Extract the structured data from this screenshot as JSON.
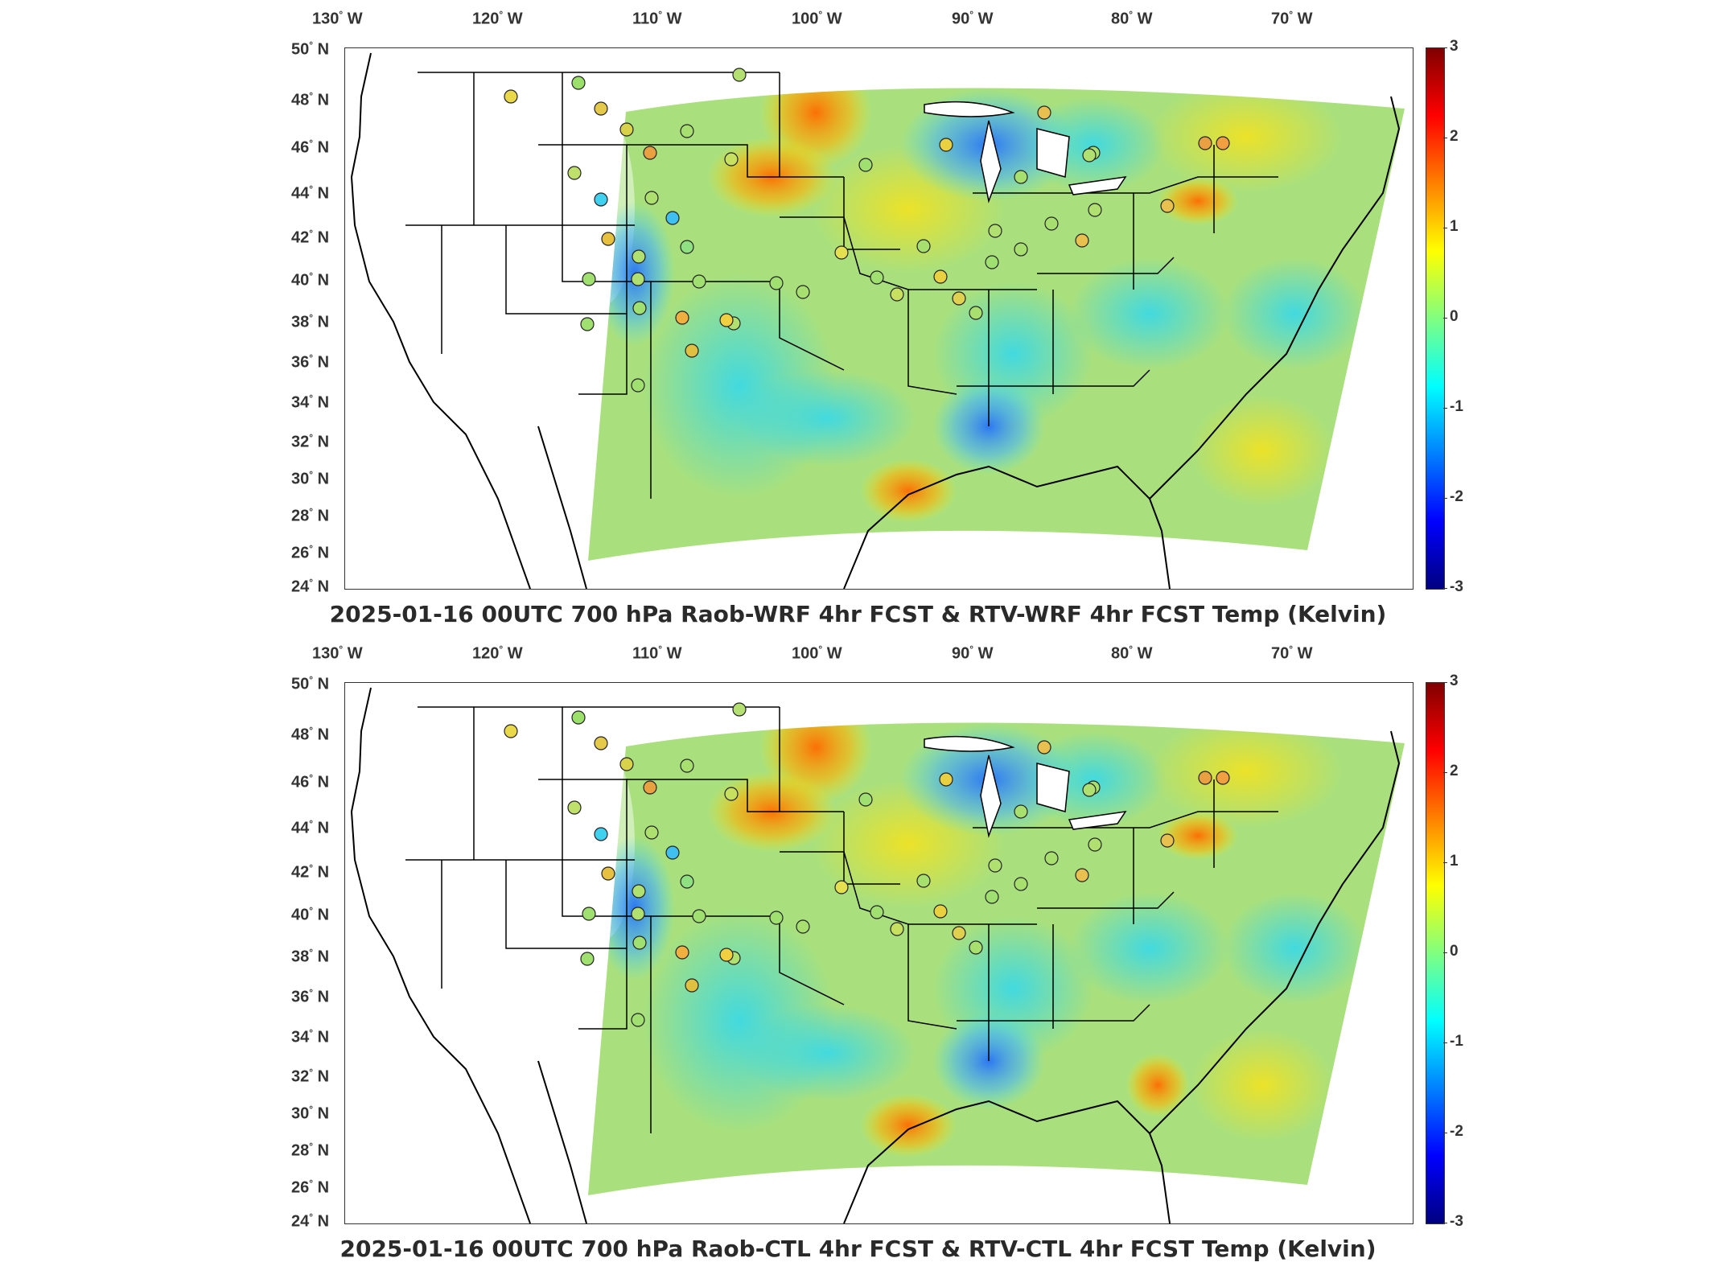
{
  "panels": [
    {
      "title": "2025-01-16 00UTC 700 hPa Raob-WRF 4hr FCST & RTV-WRF 4hr FCST Temp (Kelvin)"
    },
    {
      "title": "2025-01-16 00UTC 700 hPa Raob-CTL 4hr FCST & RTV-CTL 4hr FCST Temp (Kelvin)"
    }
  ],
  "longitude_labels": [
    "130",
    "120",
    "110",
    "100",
    "90",
    "80",
    "70"
  ],
  "longitude_suffix": "W",
  "latitude_labels": [
    "50",
    "48",
    "46",
    "44",
    "42",
    "40",
    "38",
    "36",
    "34",
    "32",
    "30",
    "28",
    "26",
    "24"
  ],
  "latitude_suffix": "N",
  "degree_symbol": "°",
  "colorbar": {
    "ticks": [
      "3",
      "2",
      "1",
      "0",
      "-1",
      "-2",
      "-3"
    ],
    "min": -3,
    "max": 3,
    "colormap": "jet",
    "colors": [
      "#000080",
      "#0000ff",
      "#0080ff",
      "#00ffff",
      "#80ff80",
      "#ffff00",
      "#ff8000",
      "#ff0000",
      "#800000"
    ]
  },
  "map_colors": {
    "background": "#ffffff",
    "coastline": "#000000",
    "dominant_field": "#b8e26a"
  }
}
